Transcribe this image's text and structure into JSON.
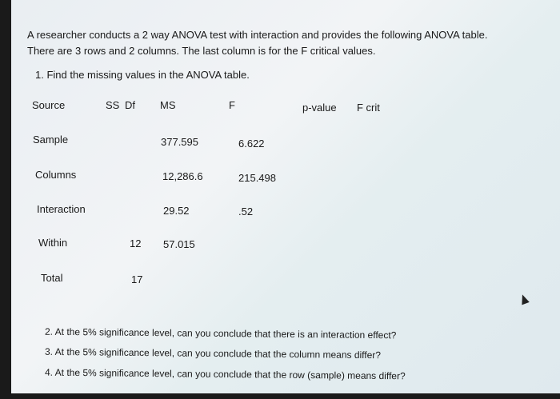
{
  "intro": {
    "line1": "A researcher conducts a 2 way ANOVA test with interaction and provides the following ANOVA table.",
    "line2": "There are 3 rows and 2 columns. The last column is for the F critical values.",
    "q1": "1.  Find the missing values in the ANOVA table."
  },
  "table": {
    "headers": [
      "Source",
      "SS",
      "Df",
      "MS",
      "F",
      "p-value",
      "F crit"
    ],
    "rows": [
      {
        "source": "Sample",
        "ss": "",
        "df": "",
        "ms": "377.595",
        "f": "6.622"
      },
      {
        "source": "Columns",
        "ss": "",
        "df": "",
        "ms": "12,286.6",
        "f": "215.498"
      },
      {
        "source": "Interaction",
        "ss": "",
        "df": "",
        "ms": "29.52",
        "f": ".52"
      },
      {
        "source": "Within",
        "ss": "",
        "df": "12",
        "ms": "57.015",
        "f": ""
      },
      {
        "source": "Total",
        "ss": "",
        "df": "17",
        "ms": "",
        "f": ""
      }
    ]
  },
  "questions": [
    "2. At the 5% significance level, can you conclude that there is an interaction effect?",
    "3. At the 5% significance level, can you conclude that the column means differ?",
    "4. At the 5% significance level, can you conclude that the row (sample) means differ?"
  ]
}
